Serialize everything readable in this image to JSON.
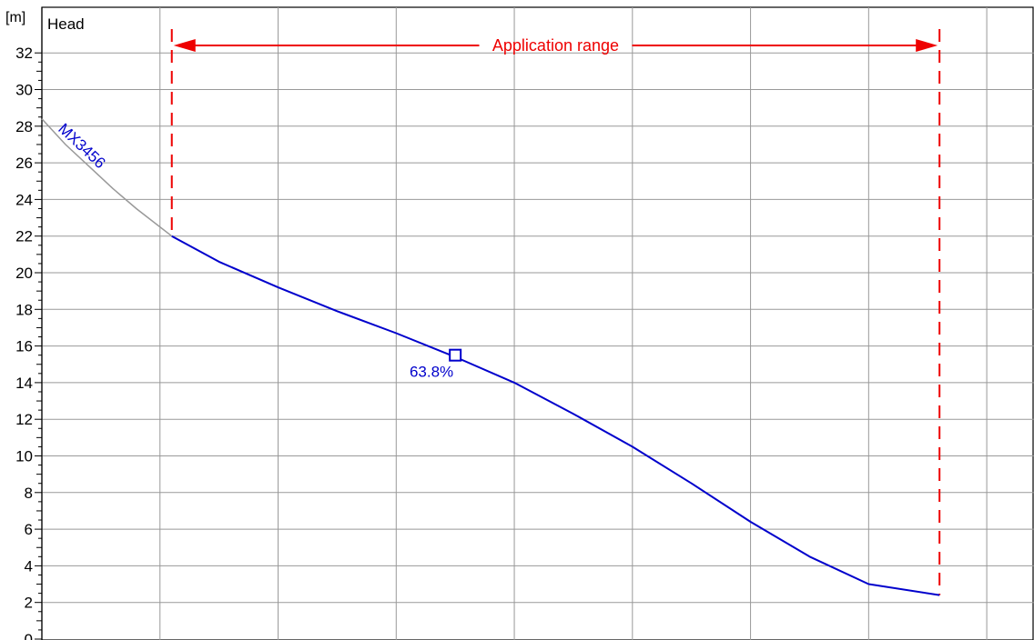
{
  "chart_data": {
    "type": "line",
    "title": "",
    "xlabel": "",
    "ylabel": "Head",
    "yunit": "[m]",
    "ylim": [
      0,
      33
    ],
    "yticks": [
      0,
      2,
      4,
      6,
      8,
      10,
      12,
      14,
      16,
      18,
      20,
      22,
      24,
      26,
      28,
      30,
      32
    ],
    "x_gridlines": [
      1,
      2,
      3,
      4,
      5,
      6,
      7,
      8
    ],
    "xlim": [
      0,
      8.4
    ],
    "grid": true,
    "series": [
      {
        "name": "MX3456",
        "color": "#0000cc",
        "extension_color": "#999999",
        "extension": {
          "x": [
            0.0,
            0.2,
            0.4,
            0.6,
            0.8,
            1.1
          ],
          "y": [
            28.4,
            27.0,
            25.8,
            24.6,
            23.5,
            22.0
          ]
        },
        "x": [
          1.1,
          1.5,
          2.0,
          2.5,
          3.0,
          3.5,
          4.0,
          4.5,
          5.0,
          5.5,
          6.0,
          6.5,
          7.0,
          7.6
        ],
        "y": [
          22.0,
          20.6,
          19.2,
          17.9,
          16.7,
          15.4,
          14.0,
          12.3,
          10.5,
          8.5,
          6.4,
          4.5,
          3.0,
          2.4
        ]
      }
    ],
    "annotations": {
      "operating_point": {
        "x": 3.5,
        "y": 15.5,
        "label": "63.8%"
      },
      "application_range": {
        "label": "Application range",
        "x_start": 1.1,
        "x_end": 7.6,
        "color": "#ee0000"
      }
    }
  }
}
